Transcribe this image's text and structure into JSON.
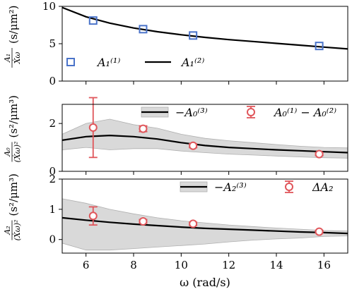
{
  "chart_data": [
    {
      "type": "line",
      "panel": "top",
      "ylabel_frac_num": "A₁",
      "ylabel_frac_den": "Ẋω",
      "ylabel_unit": "(s/μm²)",
      "ylim": [
        0,
        10
      ],
      "yticks": [
        0,
        5,
        10
      ],
      "xlim": [
        5,
        17
      ],
      "grid": false,
      "legend_position": "bottom",
      "curve": {
        "name": "A₁⁽²⁾",
        "x": [
          5,
          6,
          7,
          8,
          9,
          10,
          11,
          12,
          13,
          14,
          15,
          16,
          17
        ],
        "y": [
          9.85,
          8.6,
          7.75,
          7.1,
          6.6,
          6.2,
          5.85,
          5.55,
          5.3,
          5.05,
          4.8,
          4.55,
          4.3
        ]
      },
      "markers": {
        "name": "A₁⁽¹⁾",
        "color": "#4a73c9",
        "x": [
          6.3,
          8.4,
          10.5,
          15.8
        ],
        "y": [
          8.1,
          6.95,
          6.1,
          4.7
        ]
      }
    },
    {
      "type": "line",
      "panel": "middle",
      "ylabel_frac_num": "A₀",
      "ylabel_frac_den": "(Ẋω)²",
      "ylabel_unit": "(s²/μm³)",
      "ylim": [
        0,
        2.8
      ],
      "yticks": [
        0,
        2
      ],
      "xlim": [
        5,
        17
      ],
      "grid": false,
      "legend_position": "top",
      "band": {
        "x": [
          5,
          6,
          7,
          8,
          9,
          10,
          11,
          12,
          13,
          14,
          15,
          16,
          17
        ],
        "lower": [
          0.9,
          1.0,
          0.9,
          0.95,
          0.95,
          0.85,
          0.78,
          0.72,
          0.68,
          0.64,
          0.6,
          0.57,
          0.55
        ],
        "upper": [
          1.55,
          2.0,
          2.18,
          1.95,
          1.8,
          1.55,
          1.38,
          1.28,
          1.2,
          1.12,
          1.05,
          1.0,
          0.98
        ]
      },
      "curve": {
        "name": "−A₀⁽³⁾",
        "x": [
          5,
          6,
          7,
          8,
          9,
          10,
          11,
          12,
          13,
          14,
          15,
          16,
          17
        ],
        "y": [
          1.3,
          1.45,
          1.5,
          1.45,
          1.35,
          1.2,
          1.08,
          1.0,
          0.95,
          0.9,
          0.86,
          0.82,
          0.78
        ]
      },
      "markers": {
        "name": "A₀⁽¹⁾ − A₀⁽²⁾",
        "color": "#e0565b",
        "x": [
          6.3,
          8.4,
          10.5,
          15.8
        ],
        "y": [
          1.83,
          1.78,
          1.07,
          0.72
        ],
        "err": [
          1.25,
          0.12,
          0.08,
          0.06
        ]
      }
    },
    {
      "type": "line",
      "panel": "bottom",
      "ylabel_frac_num": "A₂",
      "ylabel_frac_den": "(Ẋω)²",
      "ylabel_unit": "(s²/μm³)",
      "ylim": [
        -0.45,
        2
      ],
      "yticks": [
        0,
        1,
        2
      ],
      "xlim": [
        5,
        17
      ],
      "xticks": [
        6,
        8,
        10,
        12,
        14,
        16
      ],
      "xlabel": "ω (rad/s)",
      "grid": false,
      "legend_position": "top",
      "band": {
        "x": [
          5,
          6,
          7,
          8,
          9,
          10,
          11,
          12,
          13,
          14,
          15,
          16,
          17
        ],
        "lower": [
          -0.12,
          -0.35,
          -0.35,
          -0.3,
          -0.25,
          -0.2,
          -0.15,
          -0.08,
          -0.02,
          0.02,
          0.05,
          0.1,
          0.12
        ],
        "upper": [
          1.35,
          1.2,
          1.0,
          0.85,
          0.72,
          0.62,
          0.55,
          0.48,
          0.43,
          0.38,
          0.34,
          0.3,
          0.28
        ]
      },
      "curve": {
        "name": "−A₂⁽³⁾",
        "x": [
          5,
          6,
          7,
          8,
          9,
          10,
          11,
          12,
          13,
          14,
          15,
          16,
          17
        ],
        "y": [
          0.72,
          0.64,
          0.57,
          0.51,
          0.46,
          0.41,
          0.37,
          0.34,
          0.31,
          0.28,
          0.25,
          0.23,
          0.2
        ]
      },
      "markers": {
        "name": "ΔA₂",
        "color": "#e0565b",
        "x": [
          6.3,
          8.4,
          10.5,
          15.8
        ],
        "y": [
          0.78,
          0.6,
          0.52,
          0.26
        ],
        "err": [
          0.3,
          0.06,
          0.05,
          0.04
        ]
      }
    }
  ]
}
